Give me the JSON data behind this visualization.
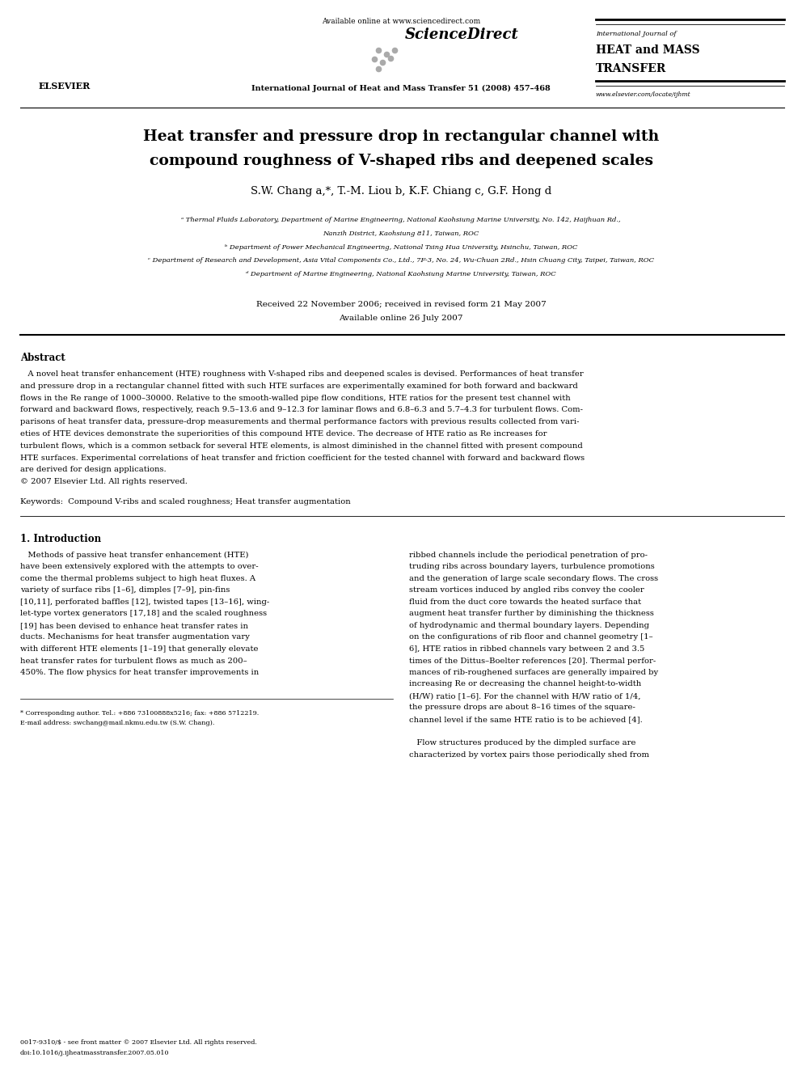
{
  "bg_color": "#ffffff",
  "page_width": 9.92,
  "page_height": 13.23,
  "header": {
    "available_online": "Available online at www.sciencedirect.com",
    "journal_line": "International Journal of Heat and Mass Transfer 51 (2008) 457–468",
    "website": "www.elsevier.com/locate/ijhmt",
    "journal_title_line1": "International Journal of",
    "journal_title_line2": "HEAT and MASS",
    "journal_title_line3": "TRANSFER"
  },
  "title_line1": "Heat transfer and pressure drop in rectangular channel with",
  "title_line2": "compound roughness of V-shaped ribs and deepened scales",
  "authors": "S.W. Chang a,*, T.-M. Liou b, K.F. Chiang c, G.F. Hong d",
  "aff1a": "ᵃ Thermal Fluids Laboratory, Department of Marine Engineering, National Kaohsiung Marine University, No. 142, Haijhuan Rd.,",
  "aff1b": "Nanzih District, Kaohsiung 811, Taiwan, ROC",
  "aff2": "ᵇ Department of Power Mechanical Engineering, National Tsing Hua University, Hsinchu, Taiwan, ROC",
  "aff3": "ᶜ Department of Research and Development, Asia Vital Components Co., Ltd., 7F-3, No. 24, Wu-Chuan 2Rd., Hsin Chuang City, Taipei, Taiwan, ROC",
  "aff4": "ᵈ Department of Marine Engineering, National Kaohsiung Marine University, Taiwan, ROC",
  "received": "Received 22 November 2006; received in revised form 21 May 2007",
  "available_online_date": "Available online 26 July 2007",
  "abstract_title": "Abstract",
  "abstract_lines": [
    "   A novel heat transfer enhancement (HTE) roughness with V-shaped ribs and deepened scales is devised. Performances of heat transfer",
    "and pressure drop in a rectangular channel fitted with such HTE surfaces are experimentally examined for both forward and backward",
    "flows in the Re range of 1000–30000. Relative to the smooth-walled pipe flow conditions, HTE ratios for the present test channel with",
    "forward and backward flows, respectively, reach 9.5–13.6 and 9–12.3 for laminar flows and 6.8–6.3 and 5.7–4.3 for turbulent flows. Com-",
    "parisons of heat transfer data, pressure-drop measurements and thermal performance factors with previous results collected from vari-",
    "eties of HTE devices demonstrate the superiorities of this compound HTE device. The decrease of HTE ratio as Re increases for",
    "turbulent flows, which is a common setback for several HTE elements, is almost diminished in the channel fitted with present compound",
    "HTE surfaces. Experimental correlations of heat transfer and friction coefficient for the tested channel with forward and backward flows",
    "are derived for design applications.",
    "© 2007 Elsevier Ltd. All rights reserved."
  ],
  "keywords": "Keywords:  Compound V-ribs and scaled roughness; Heat transfer augmentation",
  "section1_title": "1. Introduction",
  "col1_lines": [
    "   Methods of passive heat transfer enhancement (HTE)",
    "have been extensively explored with the attempts to over-",
    "come the thermal problems subject to high heat fluxes. A",
    "variety of surface ribs [1–6], dimples [7–9], pin-fins",
    "[10,11], perforated baffles [12], twisted tapes [13–16], wing-",
    "let-type vortex generators [17,18] and the scaled roughness",
    "[19] has been devised to enhance heat transfer rates in",
    "ducts. Mechanisms for heat transfer augmentation vary",
    "with different HTE elements [1–19] that generally elevate",
    "heat transfer rates for turbulent flows as much as 200–",
    "450%. The flow physics for heat transfer improvements in"
  ],
  "col2_lines": [
    "ribbed channels include the periodical penetration of pro-",
    "truding ribs across boundary layers, turbulence promotions",
    "and the generation of large scale secondary flows. The cross",
    "stream vortices induced by angled ribs convey the cooler",
    "fluid from the duct core towards the heated surface that",
    "augment heat transfer further by diminishing the thickness",
    "of hydrodynamic and thermal boundary layers. Depending",
    "on the configurations of rib floor and channel geometry [1–",
    "6], HTE ratios in ribbed channels vary between 2 and 3.5",
    "times of the Dittus–Boelter references [20]. Thermal perfor-",
    "mances of rib-roughened surfaces are generally impaired by",
    "increasing Re or decreasing the channel height-to-width",
    "(H/W) ratio [1–6]. For the channel with H/W ratio of 1/4,",
    "the pressure drops are about 8–16 times of the square-",
    "channel level if the same HTE ratio is to be achieved [4].",
    "",
    "   Flow structures produced by the dimpled surface are",
    "characterized by vortex pairs those periodically shed from"
  ],
  "footnote_line1": "* Corresponding author. Tel.: +886 73100888x5216; fax: +886 5712219.",
  "footnote_line2": "E-mail address: swchang@mail.nkmu.edu.tw (S.W. Chang).",
  "copyright1": "0017-9310/$ - see front matter © 2007 Elsevier Ltd. All rights reserved.",
  "copyright2": "doi:10.1016/j.ijheatmasstransfer.2007.05.010"
}
